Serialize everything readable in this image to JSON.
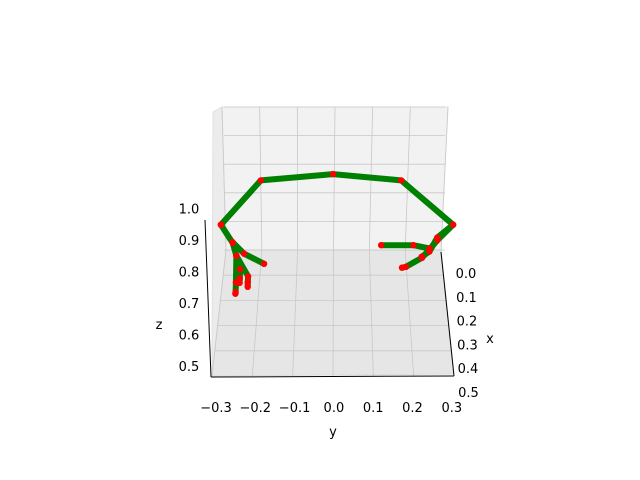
{
  "chart_data": {
    "type": "line3d",
    "title": "",
    "xlabel": "x",
    "ylabel": "y",
    "zlabel": "z",
    "xlim": [
      0.0,
      0.5
    ],
    "ylim": [
      -0.3,
      0.3
    ],
    "zlim": [
      0.5,
      1.0
    ],
    "x_ticks": [
      "0.0",
      "0.1",
      "0.2",
      "0.3",
      "0.4",
      "0.5"
    ],
    "y_ticks": [
      "−0.3",
      "−0.2",
      "−0.1",
      "0.0",
      "0.1",
      "0.2",
      "0.3"
    ],
    "z_ticks": [
      "0.5",
      "0.6",
      "0.7",
      "0.8",
      "0.9",
      "1.0"
    ],
    "grid": true,
    "line_color": "#008000",
    "joint_color": "#ff0000",
    "pane_color": "#f2f2f2",
    "gridline_color": "#c8c8c8",
    "chains": [
      {
        "joints": [
          [
            0.02,
            -0.28,
            0.97
          ],
          [
            0.05,
            -0.18,
            1.1
          ],
          [
            0.05,
            0.0,
            1.12
          ],
          [
            0.05,
            0.17,
            1.1
          ],
          [
            0.02,
            0.3,
            0.97
          ],
          [
            0.12,
            0.26,
            0.89
          ],
          [
            0.22,
            0.22,
            0.8
          ],
          [
            0.28,
            0.18,
            0.75
          ],
          [
            0.3,
            0.17,
            0.74
          ]
        ]
      },
      {
        "joints": [
          [
            0.02,
            0.3,
            0.97
          ],
          [
            0.05,
            0.26,
            0.92
          ],
          [
            0.1,
            0.24,
            0.86
          ],
          [
            0.14,
            0.22,
            0.83
          ]
        ]
      },
      {
        "joints": [
          [
            0.1,
            0.12,
            0.88
          ],
          [
            0.1,
            0.2,
            0.88
          ],
          [
            0.1,
            0.24,
            0.87
          ]
        ]
      },
      {
        "joints": [
          [
            0.02,
            -0.28,
            0.97
          ],
          [
            0.06,
            -0.25,
            0.9
          ],
          [
            0.12,
            -0.24,
            0.84
          ],
          [
            0.2,
            -0.23,
            0.77
          ],
          [
            0.26,
            -0.23,
            0.72
          ],
          [
            0.3,
            -0.23,
            0.69
          ]
        ]
      },
      {
        "joints": [
          [
            0.1,
            -0.25,
            0.89
          ],
          [
            0.2,
            -0.22,
            0.82
          ],
          [
            0.25,
            -0.17,
            0.77
          ]
        ]
      },
      {
        "joints": [
          [
            0.12,
            -0.24,
            0.84
          ],
          [
            0.22,
            -0.21,
            0.74
          ],
          [
            0.28,
            -0.21,
            0.7
          ],
          [
            0.32,
            -0.21,
            0.67
          ]
        ]
      },
      {
        "joints": [
          [
            0.12,
            -0.24,
            0.84
          ],
          [
            0.22,
            -0.24,
            0.72
          ],
          [
            0.3,
            -0.24,
            0.66
          ],
          [
            0.34,
            -0.24,
            0.64
          ]
        ]
      }
    ]
  }
}
